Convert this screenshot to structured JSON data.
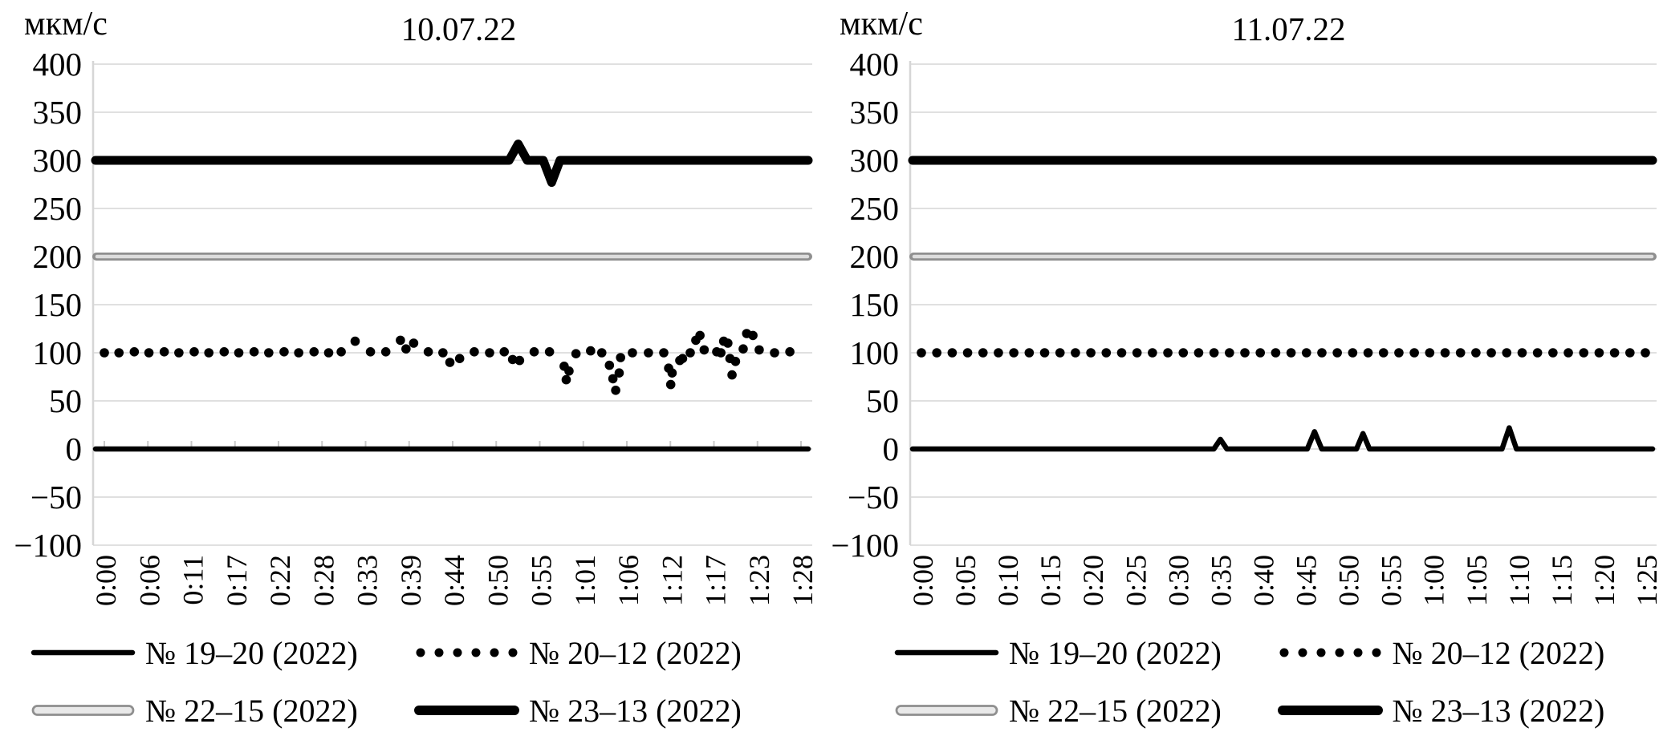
{
  "colors": {
    "series_black": "#000000",
    "gray_line_outer": "#8f8f8f",
    "gray_line_inner": "#dddddd",
    "gridline": "#e0e0e0",
    "axis_line": "#d6d6d6",
    "category_tick": "#c9c9c9"
  },
  "chart_data": [
    {
      "type": "line",
      "title": "10.07.22",
      "ylabel": "мкм/с",
      "ylim": [
        -100,
        400
      ],
      "yticks": [
        "400",
        "350",
        "300",
        "250",
        "200",
        "150",
        "100",
        "50",
        "0",
        "−50",
        "−100"
      ],
      "grid": true,
      "legend_position": "bottom",
      "x_tick_labels": [
        "0:00",
        "0:06",
        "0:11",
        "0:17",
        "0:22",
        "0:28",
        "0:33",
        "0:39",
        "0:44",
        "0:50",
        "0:55",
        "1:01",
        "1:06",
        "1:12",
        "1:17",
        "1:23",
        "1:28"
      ],
      "series": [
        {
          "name": "№ 19–20 (2022)",
          "style": "thin-solid-black",
          "base": 0,
          "spikes": []
        },
        {
          "name": "№ 20–12 (2022)",
          "style": "dotted-black",
          "base": 100,
          "points": [
            [
              0.0,
              100
            ],
            [
              0.021,
              100
            ],
            [
              0.043,
              101
            ],
            [
              0.064,
              100
            ],
            [
              0.086,
              101
            ],
            [
              0.107,
              100
            ],
            [
              0.129,
              101
            ],
            [
              0.15,
              100
            ],
            [
              0.172,
              101
            ],
            [
              0.193,
              100
            ],
            [
              0.215,
              101
            ],
            [
              0.236,
              100
            ],
            [
              0.258,
              101
            ],
            [
              0.279,
              100
            ],
            [
              0.301,
              101
            ],
            [
              0.322,
              100
            ],
            [
              0.34,
              101
            ],
            [
              0.36,
              112
            ],
            [
              0.382,
              101
            ],
            [
              0.404,
              101
            ],
            [
              0.425,
              113
            ],
            [
              0.433,
              104
            ],
            [
              0.444,
              110
            ],
            [
              0.465,
              101
            ],
            [
              0.486,
              100
            ],
            [
              0.496,
              90
            ],
            [
              0.51,
              94
            ],
            [
              0.531,
              101
            ],
            [
              0.553,
              100
            ],
            [
              0.574,
              101
            ],
            [
              0.586,
              93
            ],
            [
              0.596,
              92
            ],
            [
              0.617,
              101
            ],
            [
              0.639,
              101
            ],
            [
              0.66,
              86
            ],
            [
              0.663,
              72
            ],
            [
              0.667,
              81
            ],
            [
              0.677,
              99
            ],
            [
              0.698,
              102
            ],
            [
              0.714,
              100
            ],
            [
              0.725,
              87
            ],
            [
              0.73,
              73
            ],
            [
              0.734,
              61
            ],
            [
              0.739,
              79
            ],
            [
              0.741,
              95
            ],
            [
              0.758,
              100
            ],
            [
              0.781,
              100
            ],
            [
              0.803,
              100
            ],
            [
              0.81,
              84
            ],
            [
              0.813,
              67
            ],
            [
              0.815,
              79
            ],
            [
              0.826,
              92
            ],
            [
              0.83,
              94
            ],
            [
              0.841,
              100
            ],
            [
              0.849,
              113
            ],
            [
              0.855,
              118
            ],
            [
              0.861,
              103
            ],
            [
              0.879,
              101
            ],
            [
              0.885,
              100
            ],
            [
              0.889,
              112
            ],
            [
              0.895,
              110
            ],
            [
              0.898,
              94
            ],
            [
              0.901,
              77
            ],
            [
              0.906,
              91
            ],
            [
              0.917,
              104
            ],
            [
              0.922,
              120
            ],
            [
              0.931,
              118
            ],
            [
              0.94,
              103
            ],
            [
              0.962,
              100
            ],
            [
              0.984,
              101
            ]
          ]
        },
        {
          "name": "№ 22–15 (2022)",
          "style": "double-gray",
          "base": 200,
          "spikes": []
        },
        {
          "name": "№ 23–13 (2022)",
          "style": "thick-solid-black",
          "base": 300,
          "spikes": [
            {
              "f": 0.594,
              "v": 317,
              "w": 0.013
            },
            {
              "f": 0.642,
              "v": 277,
              "w": 0.012
            }
          ]
        }
      ]
    },
    {
      "type": "line",
      "title": "11.07.22",
      "ylabel": "мкм/с",
      "ylim": [
        -100,
        400
      ],
      "yticks": [
        "400",
        "350",
        "300",
        "250",
        "200",
        "150",
        "100",
        "50",
        "0",
        "−50",
        "−100"
      ],
      "grid": true,
      "legend_position": "bottom",
      "x_tick_labels": [
        "0:00",
        "0:05",
        "0:10",
        "0:15",
        "0:20",
        "0:25",
        "0:30",
        "0:35",
        "0:40",
        "0:45",
        "0:50",
        "0:55",
        "1:00",
        "1:05",
        "1:10",
        "1:15",
        "1:20",
        "1:25"
      ],
      "series": [
        {
          "name": "№ 19–20 (2022)",
          "style": "thin-solid-black",
          "base": 0,
          "spikes": [
            {
              "f": 0.413,
              "v": 10,
              "w": 0.009
            },
            {
              "f": 0.543,
              "v": 18,
              "w": 0.01
            },
            {
              "f": 0.61,
              "v": 16,
              "w": 0.009
            },
            {
              "f": 0.812,
              "v": 22,
              "w": 0.01
            }
          ]
        },
        {
          "name": "№ 20–12 (2022)",
          "style": "dotted-black",
          "base": 100,
          "dot_count": 48
        },
        {
          "name": "№ 22–15 (2022)",
          "style": "double-gray",
          "base": 200,
          "spikes": []
        },
        {
          "name": "№ 23–13 (2022)",
          "style": "thick-solid-black",
          "base": 300,
          "spikes": []
        }
      ]
    }
  ]
}
